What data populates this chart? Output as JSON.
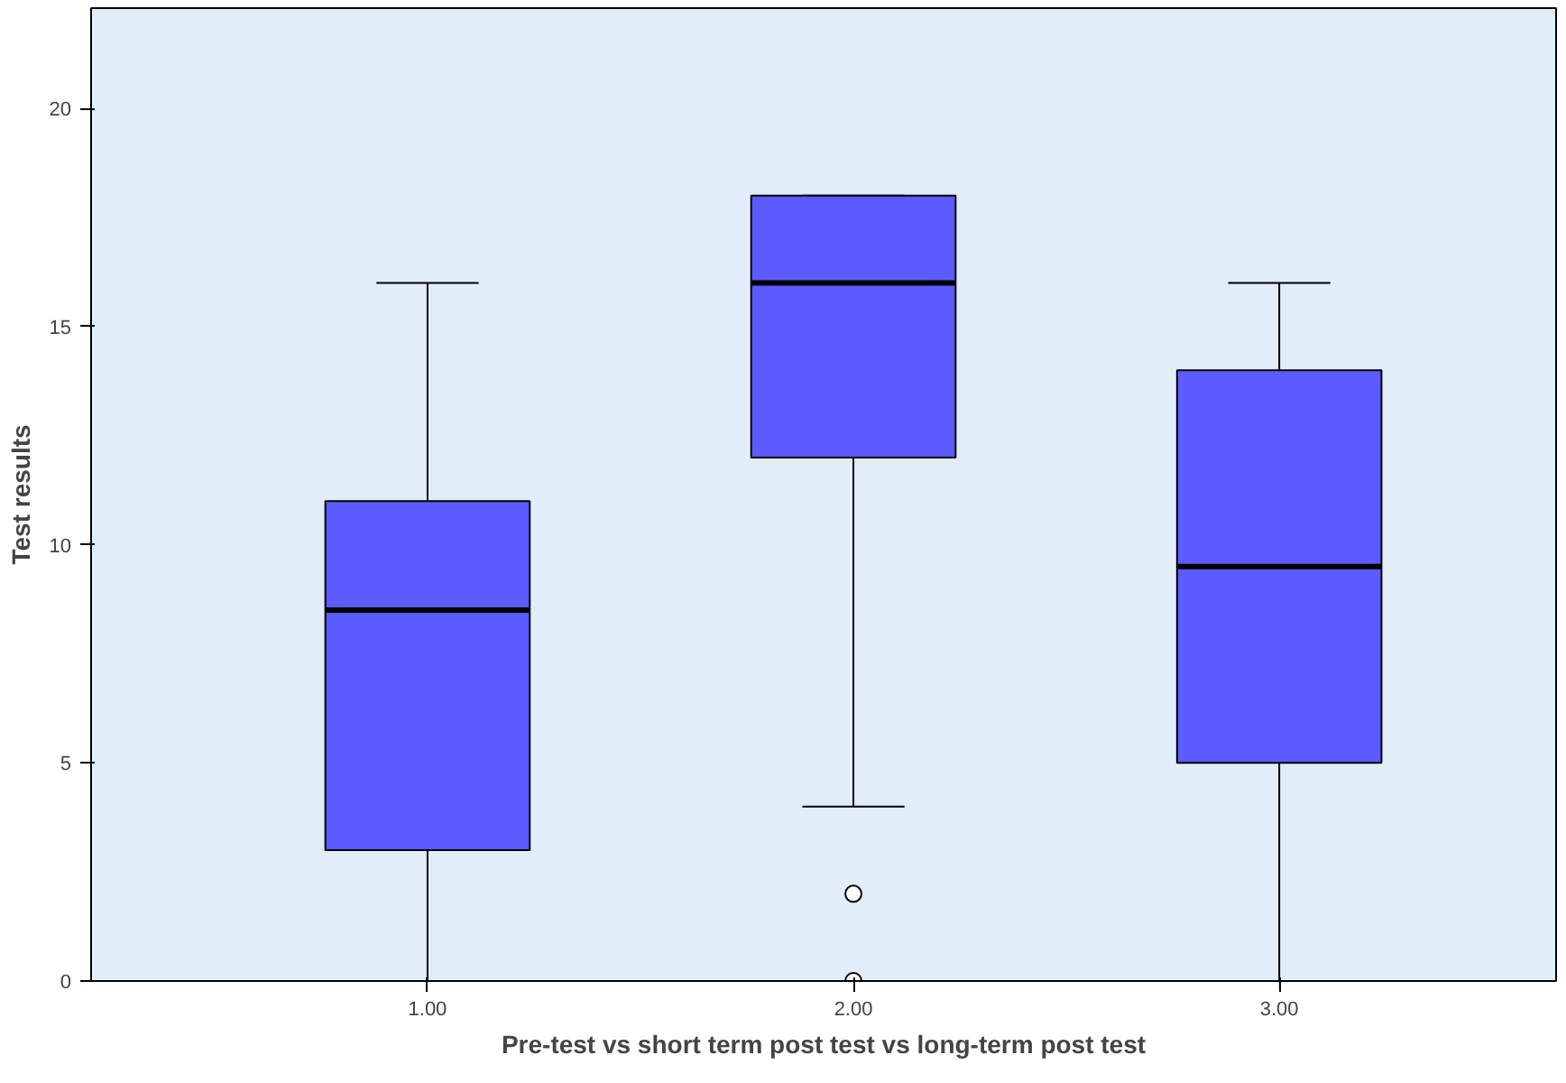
{
  "chart_data": {
    "type": "box",
    "xlabel": "Pre-test vs short term post test vs long-term post test",
    "ylabel": "Test results",
    "categories": [
      "1.00",
      "2.00",
      "3.00"
    ],
    "color": "#5b5bff",
    "boxes": [
      {
        "low": 0,
        "q1": 3,
        "median": 8.5,
        "q3": 11,
        "high": 16
      },
      {
        "low": 4,
        "q1": 12,
        "median": 16,
        "q3": 18,
        "high": 18,
        "outliers": [
          2,
          0
        ]
      },
      {
        "low": 0,
        "q1": 5,
        "median": 9.5,
        "q3": 14,
        "high": 16
      }
    ],
    "ylim": [
      0,
      22.3
    ],
    "yticks": [
      0,
      5,
      10,
      15,
      20
    ],
    "grid": false
  }
}
